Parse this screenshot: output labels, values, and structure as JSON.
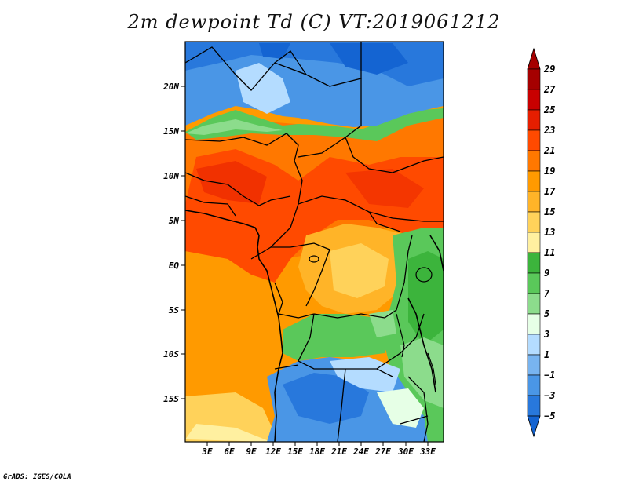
{
  "title": "2m dewpoint Td (C) VT:2019061212",
  "credit": "GrADS: IGES/COLA",
  "lat_labels": [
    "20N",
    "15N",
    "10N",
    "5N",
    "EQ",
    "5S",
    "10S",
    "15S"
  ],
  "lon_labels": [
    "3E",
    "6E",
    "9E",
    "12E",
    "15E",
    "18E",
    "21E",
    "24E",
    "27E",
    "30E",
    "33E"
  ],
  "colorbar": {
    "labels": [
      "29",
      "27",
      "25",
      "23",
      "21",
      "19",
      "17",
      "15",
      "13",
      "11",
      "9",
      "7",
      "5",
      "3",
      "1",
      "−1",
      "−3",
      "−5"
    ],
    "colors": [
      "#a50000",
      "#c80000",
      "#e61e00",
      "#ff4a00",
      "#ff7800",
      "#ff9a00",
      "#ffb428",
      "#ffd25a",
      "#fff0a0",
      "#3cb43c",
      "#5ac85a",
      "#8cdc8c",
      "#e6ffe6",
      "#b4dcff",
      "#78b4f0",
      "#4a96e6",
      "#2878dc",
      "#1464d2"
    ]
  },
  "region_colors": {
    "sahara": "#1464d2",
    "sahel_green": "#5ac85a",
    "sahel": "#ff7800",
    "west_africa": "#ff4a00",
    "congo_basin": "#ffb428",
    "east_highlands": "#3cb43c",
    "south_blue": "#4a96e6",
    "atlantic": "#ff9a00",
    "atlantic_south": "#ffd25a"
  }
}
